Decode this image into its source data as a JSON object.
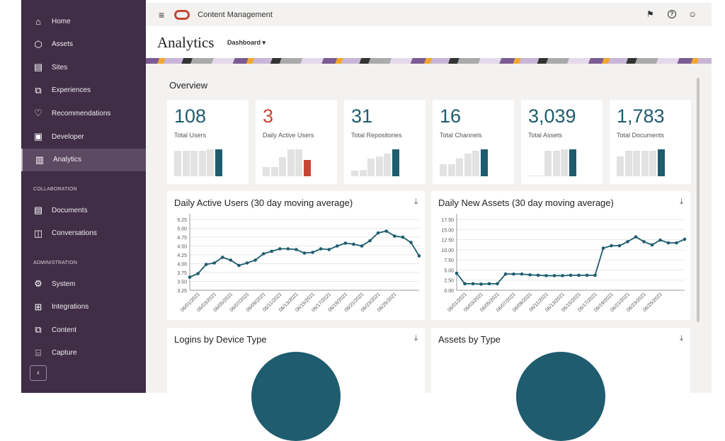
{
  "sidebar": {
    "items": [
      {
        "label": "Home",
        "icon": "home-icon",
        "glyph": "⌂"
      },
      {
        "label": "Assets",
        "icon": "cube-icon",
        "glyph": "⬡"
      },
      {
        "label": "Sites",
        "icon": "sites-icon",
        "glyph": "▤"
      },
      {
        "label": "Experiences",
        "icon": "experiences-icon",
        "glyph": "⧉"
      },
      {
        "label": "Recommendations",
        "icon": "lightbulb-icon",
        "glyph": "♡"
      },
      {
        "label": "Developer",
        "icon": "developer-icon",
        "glyph": "▣"
      },
      {
        "label": "Analytics",
        "icon": "analytics-icon",
        "glyph": "▥",
        "active": true
      }
    ],
    "collab_label": "COLLABORATION",
    "collab_items": [
      {
        "label": "Documents",
        "icon": "documents-icon",
        "glyph": "▤"
      },
      {
        "label": "Conversations",
        "icon": "conversations-icon",
        "glyph": "◫"
      }
    ],
    "admin_label": "ADMINISTRATION",
    "admin_items": [
      {
        "label": "System",
        "icon": "gear-icon",
        "glyph": "⚙"
      },
      {
        "label": "Integrations",
        "icon": "integrations-icon",
        "glyph": "⊞"
      },
      {
        "label": "Content",
        "icon": "content-icon",
        "glyph": "⧉"
      },
      {
        "label": "Capture",
        "icon": "capture-icon",
        "glyph": "⌸"
      }
    ],
    "collapse_glyph": "‹"
  },
  "topbar": {
    "app_name": "Content Management",
    "menu_glyph": "≡",
    "flag_glyph": "⚑",
    "help_glyph": "?",
    "user_glyph": "☺"
  },
  "page": {
    "title": "Analytics",
    "view_select": "Dashboard ▾"
  },
  "overview": {
    "title": "Overview",
    "accent": "#1e5c6e",
    "alert": "#c74634",
    "kpis": [
      {
        "value": "108",
        "label": "Total Users",
        "bars": [
          0.95,
          0.95,
          0.95,
          0.95,
          1,
          1
        ],
        "color": "#1e5c6e"
      },
      {
        "value": "3",
        "label": "Daily Active Users",
        "bars": [
          0.35,
          0.35,
          0.7,
          1,
          1,
          0.6
        ],
        "color": "#c74634"
      },
      {
        "value": "31",
        "label": "Total Repositories",
        "bars": [
          0.2,
          0.25,
          0.65,
          0.75,
          0.85,
          1
        ],
        "color": "#1e5c6e"
      },
      {
        "value": "16",
        "label": "Total Channels",
        "bars": [
          0.45,
          0.45,
          0.65,
          0.85,
          0.95,
          1
        ],
        "color": "#1e5c6e"
      },
      {
        "value": "3,039",
        "label": "Total Assets",
        "bars": [
          0.02,
          0.02,
          0.95,
          0.95,
          1,
          1
        ],
        "color": "#1e5c6e"
      },
      {
        "value": "1,783",
        "label": "Total Documents",
        "bars": [
          0.75,
          0.95,
          0.95,
          0.95,
          0.95,
          1
        ],
        "color": "#1e5c6e"
      }
    ]
  },
  "chart_data": [
    {
      "type": "line",
      "title": "Daily Active Users (30 day moving average)",
      "ylim": [
        3.25,
        5.25
      ],
      "yticks": [
        "3.25",
        "3.50",
        "3.75",
        "4.00",
        "4.25",
        "4.50",
        "4.75",
        "5.00",
        "5.25"
      ],
      "xticks": [
        "06/01/2021",
        "06/03/2021",
        "06/05/2021",
        "06/07/2021",
        "06/09/2021",
        "06/11/2021",
        "06/13/2021",
        "06/15/2021",
        "06/17/2021",
        "06/19/2021",
        "06/21/2021",
        "06/23/2021",
        "06/25/2021"
      ],
      "x": [
        "05/31/2021",
        "06/01/2021",
        "06/02/2021",
        "06/03/2021",
        "06/04/2021",
        "06/05/2021",
        "06/06/2021",
        "06/07/2021",
        "06/08/2021",
        "06/09/2021",
        "06/10/2021",
        "06/11/2021",
        "06/12/2021",
        "06/13/2021",
        "06/14/2021",
        "06/15/2021",
        "06/16/2021",
        "06/17/2021",
        "06/18/2021",
        "06/19/2021",
        "06/20/2021",
        "06/21/2021",
        "06/22/2021",
        "06/23/2021",
        "06/24/2021",
        "06/25/2021",
        "06/26/2021",
        "06/27/2021",
        "06/28/2021"
      ],
      "values": [
        3.62,
        3.72,
        3.98,
        4.02,
        4.18,
        4.1,
        3.95,
        4.02,
        4.1,
        4.28,
        4.35,
        4.42,
        4.42,
        4.4,
        4.3,
        4.32,
        4.42,
        4.4,
        4.5,
        4.58,
        4.55,
        4.5,
        4.65,
        4.87,
        4.92,
        4.78,
        4.75,
        4.6,
        4.22
      ],
      "grid": true,
      "color": "#1e5c6e"
    },
    {
      "type": "line",
      "title": "Daily New Assets (30 day moving average)",
      "ylim": [
        0,
        17.5
      ],
      "yticks": [
        "0.00",
        "2.50",
        "5.00",
        "7.50",
        "10.00",
        "12.50",
        "15.00",
        "17.50"
      ],
      "xticks": [
        "06/01/2021",
        "06/03/2021",
        "06/05/2021",
        "06/07/2021",
        "06/09/2021",
        "06/11/2021",
        "06/13/2021",
        "06/15/2021",
        "06/17/2021",
        "06/19/2021",
        "06/21/2021",
        "06/23/2021",
        "06/25/2021"
      ],
      "x": [
        "05/31/2021",
        "06/01/2021",
        "06/02/2021",
        "06/03/2021",
        "06/04/2021",
        "06/05/2021",
        "06/06/2021",
        "06/07/2021",
        "06/08/2021",
        "06/09/2021",
        "06/10/2021",
        "06/11/2021",
        "06/12/2021",
        "06/13/2021",
        "06/14/2021",
        "06/15/2021",
        "06/16/2021",
        "06/17/2021",
        "06/18/2021",
        "06/19/2021",
        "06/20/2021",
        "06/21/2021",
        "06/22/2021",
        "06/23/2021",
        "06/24/2021",
        "06/25/2021",
        "06/26/2021",
        "06/27/2021",
        "06/28/2021"
      ],
      "values": [
        4.2,
        1.6,
        1.6,
        1.5,
        1.6,
        1.6,
        4.0,
        4.0,
        4.0,
        3.8,
        3.7,
        3.6,
        3.6,
        3.6,
        3.7,
        3.7,
        3.7,
        3.7,
        10.4,
        11.0,
        11.0,
        12.0,
        13.2,
        12.0,
        11.2,
        12.4,
        11.7,
        11.7,
        12.6
      ],
      "grid": true,
      "color": "#1e5c6e"
    },
    {
      "type": "pie",
      "title": "Logins by Device Type"
    },
    {
      "type": "pie",
      "title": "Assets by Type"
    }
  ],
  "download_glyph": "⤓"
}
